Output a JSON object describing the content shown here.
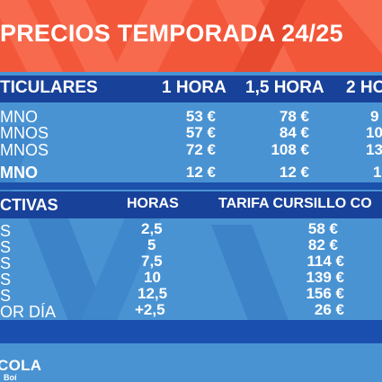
{
  "header": {
    "title": "PRECIOS TEMPORADA 24/25"
  },
  "particulares": {
    "heading": "TICULARES",
    "columns": [
      "1 HORA",
      "1,5 HORA",
      "2 HO"
    ],
    "rows": [
      {
        "label": "MNO",
        "values": [
          "53 €",
          "78 €",
          "9"
        ]
      },
      {
        "label": "MNOS",
        "values": [
          "57 €",
          "84 €",
          "10"
        ]
      },
      {
        "label": "MNOS",
        "values": [
          "72 €",
          "108 €",
          "13"
        ]
      },
      {
        "label": "MNO",
        "values": [
          "12 €",
          "12 €",
          "1"
        ]
      }
    ]
  },
  "colectivas": {
    "heading": "CTIVAS",
    "columns": [
      "HORAS",
      "TARIFA CURSILLO CO"
    ],
    "rows": [
      {
        "label": "S",
        "hours": "2,5",
        "price": "58 €"
      },
      {
        "label": "S",
        "hours": "5",
        "price": "82 €"
      },
      {
        "label": "S",
        "hours": "7,5",
        "price": "114 €"
      },
      {
        "label": "S",
        "hours": "10",
        "price": "139 €"
      },
      {
        "label": "S",
        "hours": "12,5",
        "price": "156 €"
      },
      {
        "label": "OR DÍA",
        "hours": "+2,5",
        "price": "26 €"
      }
    ]
  },
  "footer": {
    "logo": "COLA",
    "sub": "Boí"
  },
  "colors": {
    "header": "#f3573a",
    "bar": "#18419a",
    "body": "#4a93d3"
  }
}
